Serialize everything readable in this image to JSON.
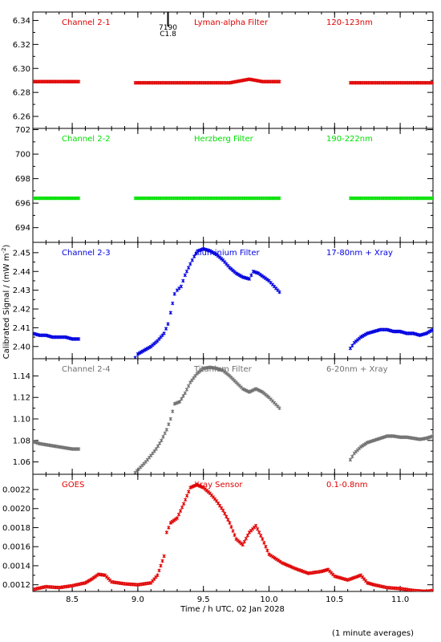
{
  "y_axis_label": "Calibrated Signal / (mW m",
  "y_axis_label_sup": "-2",
  "y_axis_label_end": ")",
  "x_axis_label": "Time / h UTC, 02 Jan 2028",
  "footnote": "(1 minute averages)",
  "marker": {
    "x": 9.23,
    "labels": [
      "7190",
      "C1.8"
    ]
  },
  "chart_data": [
    {
      "type": "scatter",
      "color": "#e00000",
      "texts": [
        "Channel 2-1",
        "Lyman-alpha Filter",
        "120-123nm"
      ],
      "ylim": [
        6.25,
        6.347
      ],
      "yticks": [
        "6.26",
        "6.28",
        "6.30",
        "6.32",
        "6.34"
      ],
      "segments": [
        {
          "x": [
            8.2,
            8.25,
            8.3,
            8.35,
            8.4,
            8.45,
            8.5,
            8.55
          ],
          "y": [
            6.289,
            6.289,
            6.289,
            6.289,
            6.289,
            6.289,
            6.289,
            6.289
          ]
        },
        {
          "x": [
            8.98,
            9.1,
            9.2,
            9.3,
            9.4,
            9.5,
            9.6,
            9.7,
            9.75,
            9.8,
            9.85,
            9.9,
            9.95,
            10.0,
            10.08
          ],
          "y": [
            6.288,
            6.288,
            6.288,
            6.288,
            6.288,
            6.288,
            6.288,
            6.288,
            6.289,
            6.29,
            6.291,
            6.29,
            6.289,
            6.289,
            6.289
          ]
        },
        {
          "x": [
            10.62,
            10.7,
            10.8,
            10.9,
            11.0,
            11.1,
            11.25
          ],
          "y": [
            6.288,
            6.288,
            6.288,
            6.288,
            6.288,
            6.288,
            6.288
          ]
        }
      ]
    },
    {
      "type": "scatter",
      "color": "#00e000",
      "texts": [
        "Channel 2-2",
        "Herzberg Filter",
        "190-222nm"
      ],
      "ylim": [
        692.8,
        702.1
      ],
      "yticks": [
        "694",
        "696",
        "698",
        "700",
        "702"
      ],
      "segments": [
        {
          "x": [
            8.2,
            8.25,
            8.3,
            8.35,
            8.4,
            8.45,
            8.5,
            8.55
          ],
          "y": [
            696.4,
            696.4,
            696.4,
            696.4,
            696.4,
            696.4,
            696.4,
            696.4
          ]
        },
        {
          "x": [
            8.98,
            9.1,
            9.2,
            9.3,
            9.4,
            9.5,
            9.6,
            9.7,
            9.8,
            9.9,
            10.0,
            10.08
          ],
          "y": [
            696.4,
            696.4,
            696.4,
            696.4,
            696.4,
            696.4,
            696.4,
            696.4,
            696.4,
            696.4,
            696.4,
            696.4
          ]
        },
        {
          "x": [
            10.62,
            10.7,
            10.8,
            10.9,
            11.0,
            11.1,
            11.25
          ],
          "y": [
            696.4,
            696.4,
            696.4,
            696.4,
            696.4,
            696.4,
            696.4
          ]
        }
      ]
    },
    {
      "type": "scatter",
      "color": "#0000e0",
      "texts": [
        "Channel 2-3",
        "Aluminium Filter",
        "17-80nm + Xray"
      ],
      "ylim": [
        2.3935,
        2.4555
      ],
      "yticks": [
        "2.40",
        "2.41",
        "2.42",
        "2.43",
        "2.44",
        "2.45"
      ],
      "segments": [
        {
          "x": [
            8.2,
            8.25,
            8.3,
            8.35,
            8.4,
            8.45,
            8.5,
            8.55
          ],
          "y": [
            2.407,
            2.406,
            2.406,
            2.405,
            2.405,
            2.405,
            2.404,
            2.404
          ]
        },
        {
          "x": [
            8.98,
            9.0,
            9.05,
            9.1,
            9.15,
            9.2,
            9.23,
            9.25,
            9.28,
            9.3,
            9.33,
            9.36,
            9.4,
            9.43,
            9.46,
            9.5,
            9.55,
            9.6,
            9.65,
            9.7,
            9.75,
            9.8,
            9.85,
            9.88,
            9.92,
            9.96,
            10.0,
            10.04,
            10.08
          ],
          "y": [
            2.394,
            2.396,
            2.398,
            2.4,
            2.403,
            2.407,
            2.412,
            2.418,
            2.428,
            2.43,
            2.432,
            2.438,
            2.444,
            2.448,
            2.451,
            2.452,
            2.451,
            2.449,
            2.446,
            2.442,
            2.439,
            2.437,
            2.436,
            2.44,
            2.439,
            2.437,
            2.435,
            2.432,
            2.429
          ]
        },
        {
          "x": [
            10.62,
            10.65,
            10.7,
            10.75,
            10.8,
            10.85,
            10.9,
            10.95,
            11.0,
            11.05,
            11.1,
            11.15,
            11.2,
            11.25
          ],
          "y": [
            2.399,
            2.402,
            2.405,
            2.407,
            2.408,
            2.409,
            2.409,
            2.408,
            2.408,
            2.407,
            2.407,
            2.406,
            2.407,
            2.409
          ]
        }
      ]
    },
    {
      "type": "scatter",
      "color": "#707070",
      "texts": [
        "Channel 2-4",
        "Titanium Filter",
        "6-20nm + Xray"
      ],
      "ylim": [
        1.0485,
        1.156
      ],
      "yticks": [
        "1.06",
        "1.08",
        "1.10",
        "1.12",
        "1.14"
      ],
      "segments": [
        {
          "x": [
            8.2,
            8.25,
            8.3,
            8.35,
            8.4,
            8.45,
            8.5,
            8.55
          ],
          "y": [
            1.079,
            1.077,
            1.076,
            1.075,
            1.074,
            1.073,
            1.072,
            1.072
          ]
        },
        {
          "x": [
            8.98,
            9.02,
            9.06,
            9.1,
            9.14,
            9.18,
            9.22,
            9.25,
            9.28,
            9.32,
            9.36,
            9.4,
            9.45,
            9.5,
            9.55,
            9.6,
            9.65,
            9.7,
            9.75,
            9.8,
            9.85,
            9.9,
            9.95,
            10.0,
            10.04,
            10.08
          ],
          "y": [
            1.05,
            1.055,
            1.06,
            1.066,
            1.072,
            1.08,
            1.09,
            1.1,
            1.114,
            1.116,
            1.124,
            1.134,
            1.142,
            1.147,
            1.148,
            1.147,
            1.145,
            1.14,
            1.134,
            1.128,
            1.125,
            1.128,
            1.125,
            1.12,
            1.115,
            1.11
          ]
        },
        {
          "x": [
            10.62,
            10.65,
            10.7,
            10.75,
            10.8,
            10.85,
            10.9,
            10.95,
            11.0,
            11.05,
            11.1,
            11.15,
            11.2,
            11.25
          ],
          "y": [
            1.062,
            1.068,
            1.074,
            1.078,
            1.08,
            1.082,
            1.084,
            1.084,
            1.083,
            1.083,
            1.082,
            1.081,
            1.082,
            1.084
          ]
        }
      ]
    },
    {
      "type": "scatter",
      "color": "#e00000",
      "texts": [
        "GOES",
        "Xray Sensor",
        "0.1-0.8nm"
      ],
      "ylim": [
        0.00113,
        0.00236
      ],
      "yticks": [
        "0.0012",
        "0.0014",
        "0.0016",
        "0.0018",
        "0.0020",
        "0.0022"
      ],
      "xlim": [
        8.2,
        11.25
      ],
      "xticks": [
        "8.5",
        "9.0",
        "9.5",
        "10.0",
        "10.5",
        "11.0"
      ],
      "segments": [
        {
          "x": [
            8.2,
            8.3,
            8.4,
            8.5,
            8.6,
            8.65,
            8.7,
            8.75,
            8.8,
            8.9,
            9.0,
            9.1,
            9.15,
            9.2,
            9.22,
            9.25,
            9.3,
            9.35,
            9.4,
            9.45,
            9.5,
            9.55,
            9.6,
            9.65,
            9.7,
            9.75,
            9.8,
            9.85,
            9.9,
            9.95,
            10.0,
            10.1,
            10.2,
            10.3,
            10.4,
            10.45,
            10.5,
            10.6,
            10.7,
            10.75,
            10.8,
            10.9,
            11.0,
            11.1,
            11.2,
            11.25
          ],
          "y": [
            0.00115,
            0.00118,
            0.00117,
            0.00119,
            0.00122,
            0.00126,
            0.00131,
            0.0013,
            0.00123,
            0.00121,
            0.0012,
            0.00122,
            0.0013,
            0.0015,
            0.00175,
            0.00185,
            0.0019,
            0.00205,
            0.00222,
            0.00225,
            0.00222,
            0.00216,
            0.00208,
            0.00198,
            0.00185,
            0.00168,
            0.00162,
            0.00175,
            0.00182,
            0.00168,
            0.00152,
            0.00143,
            0.00137,
            0.00132,
            0.00134,
            0.00136,
            0.00129,
            0.00125,
            0.0013,
            0.00122,
            0.0012,
            0.00117,
            0.00116,
            0.00114,
            0.00113,
            0.00114
          ]
        }
      ]
    }
  ]
}
